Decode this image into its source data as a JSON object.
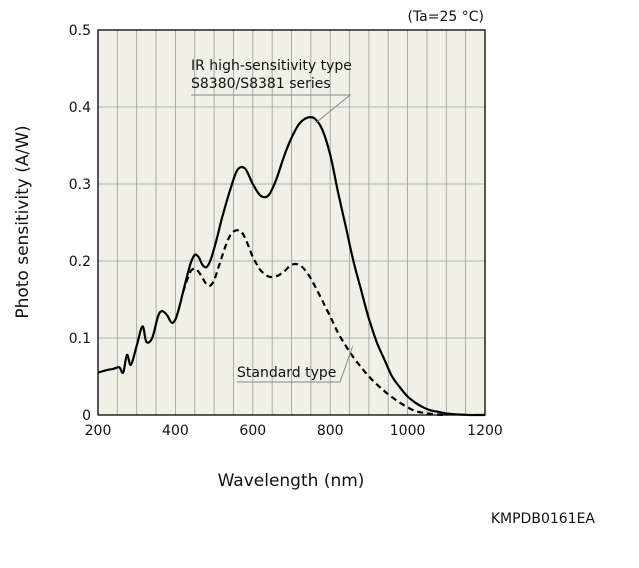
{
  "condition": "(Ta=25 °C)",
  "doc_code": "KMPDB0161EA",
  "chart_data": {
    "type": "line",
    "title": "",
    "xlabel": "Wavelength (nm)",
    "ylabel": "Photo sensitivity (A/W)",
    "xlim": [
      200,
      1200
    ],
    "ylim": [
      0,
      0.5
    ],
    "x_ticks": [
      "200",
      "400",
      "600",
      "800",
      "1000",
      "1200"
    ],
    "y_ticks": [
      "0",
      "0.1",
      "0.2",
      "0.3",
      "0.4",
      "0.5"
    ],
    "grid": true,
    "colors": {
      "plot_bg": "#f0f0e6",
      "grid": "#9a9a9a",
      "line": "#000000"
    },
    "series": [
      {
        "name": "IR high-sensitivity type\nS8380/S8381 series",
        "style": "solid",
        "x": [
          200,
          220,
          240,
          255,
          265,
          275,
          285,
          300,
          315,
          325,
          340,
          355,
          365,
          378,
          390,
          400,
          410,
          420,
          430,
          440,
          450,
          460,
          470,
          480,
          490,
          500,
          510,
          520,
          540,
          560,
          580,
          600,
          620,
          640,
          660,
          680,
          700,
          720,
          740,
          760,
          780,
          800,
          820,
          840,
          860,
          880,
          900,
          920,
          940,
          960,
          980,
          1000,
          1020,
          1040,
          1060,
          1080,
          1100,
          1120,
          1140,
          1160,
          1180,
          1200
        ],
        "y": [
          0.055,
          0.058,
          0.06,
          0.062,
          0.055,
          0.078,
          0.065,
          0.09,
          0.115,
          0.095,
          0.1,
          0.128,
          0.135,
          0.13,
          0.12,
          0.124,
          0.14,
          0.16,
          0.18,
          0.198,
          0.208,
          0.205,
          0.195,
          0.192,
          0.2,
          0.216,
          0.235,
          0.255,
          0.29,
          0.318,
          0.32,
          0.3,
          0.285,
          0.285,
          0.305,
          0.335,
          0.36,
          0.378,
          0.386,
          0.385,
          0.37,
          0.338,
          0.29,
          0.245,
          0.2,
          0.162,
          0.125,
          0.095,
          0.072,
          0.05,
          0.036,
          0.024,
          0.016,
          0.01,
          0.006,
          0.004,
          0.002,
          0.001,
          0.0005,
          0.0,
          0.0,
          0.0
        ]
      },
      {
        "name": "Standard type",
        "style": "dashed",
        "x": [
          420,
          430,
          440,
          450,
          460,
          470,
          480,
          490,
          500,
          510,
          520,
          530,
          540,
          550,
          560,
          570,
          580,
          590,
          600,
          610,
          620,
          640,
          660,
          680,
          700,
          720,
          740,
          760,
          780,
          800,
          820,
          840,
          860,
          880,
          900,
          920,
          940,
          960,
          980,
          1000,
          1020,
          1040,
          1060,
          1080,
          1100
        ],
        "y": [
          0.16,
          0.175,
          0.187,
          0.19,
          0.186,
          0.178,
          0.17,
          0.168,
          0.175,
          0.19,
          0.205,
          0.22,
          0.232,
          0.238,
          0.24,
          0.238,
          0.23,
          0.218,
          0.205,
          0.196,
          0.188,
          0.18,
          0.18,
          0.186,
          0.195,
          0.195,
          0.185,
          0.168,
          0.148,
          0.128,
          0.107,
          0.09,
          0.075,
          0.062,
          0.05,
          0.04,
          0.031,
          0.023,
          0.016,
          0.01,
          0.005,
          0.003,
          0.0015,
          0.0005,
          0.0
        ]
      }
    ],
    "annotations": [
      {
        "text_lines": [
          "IR high-sensitivity type",
          "S8380/S8381 series"
        ],
        "points_to": [
          755,
          0.382
        ]
      },
      {
        "text_lines": [
          "Standard type"
        ],
        "points_to": [
          858,
          0.092
        ]
      }
    ]
  }
}
